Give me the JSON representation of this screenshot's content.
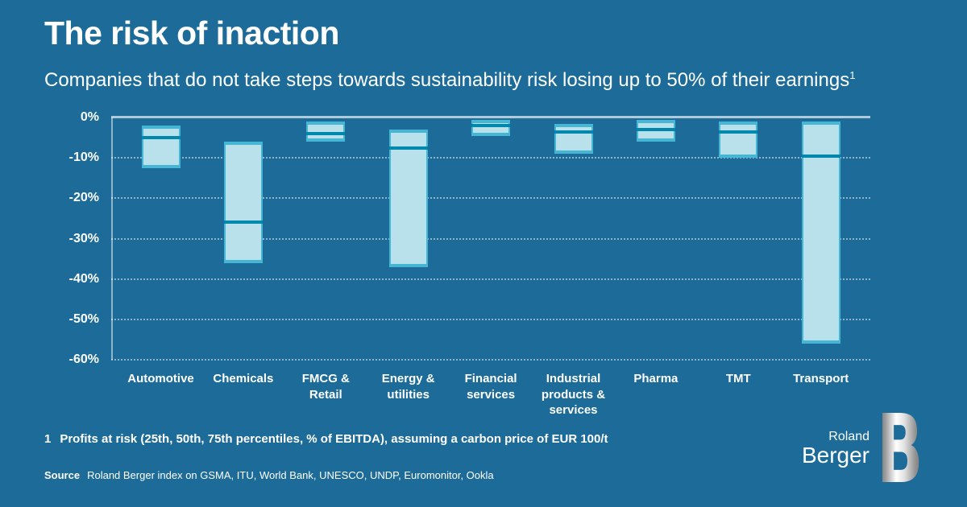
{
  "header": {
    "title": "The risk of inaction",
    "subtitle": "Companies that do not take steps towards sustainability risk losing up to 50% of their earnings",
    "subtitle_footnote_ref": "1"
  },
  "chart_data": {
    "type": "bar",
    "subtype": "floating_range_bars_with_median",
    "description": "Profits at risk by industry: bar spans 25th to 75th percentile loss (% of EBITDA), inner line marks 50th percentile",
    "ylim": [
      -60,
      0
    ],
    "yticks": [
      0,
      -10,
      -20,
      -30,
      -40,
      -50,
      -60
    ],
    "ytick_labels": [
      "0%",
      "-10%",
      "-20%",
      "-30%",
      "-40%",
      "-50%",
      "-60%"
    ],
    "grid": "horizontal_dotted",
    "legend": "none",
    "categories": [
      "Automotive",
      "Chemicals",
      "FMCG & Retail",
      "Energy & utilities",
      "Financial services",
      "Industrial products & services",
      "Pharma",
      "TMT",
      "Transport"
    ],
    "bars": [
      {
        "category": "Automotive",
        "label_lines": [
          "Automotive"
        ],
        "p25": -2,
        "p50": -5,
        "p75": -12.5
      },
      {
        "category": "Chemicals",
        "label_lines": [
          "Chemicals"
        ],
        "p25": -6,
        "p50": -26,
        "p75": -36
      },
      {
        "category": "FMCG & Retail",
        "label_lines": [
          "FMCG &",
          "Retail"
        ],
        "p25": -1,
        "p50": -4,
        "p75": -6
      },
      {
        "category": "Energy & utilities",
        "label_lines": [
          "Energy &",
          "utilities"
        ],
        "p25": -3,
        "p50": -7.5,
        "p75": -37
      },
      {
        "category": "Financial services",
        "label_lines": [
          "Financial",
          "services"
        ],
        "p25": -0.5,
        "p50": -2,
        "p75": -4.5
      },
      {
        "category": "Industrial products & services",
        "label_lines": [
          "Industrial",
          "products &",
          "services"
        ],
        "p25": -1.5,
        "p50": -3.5,
        "p75": -9
      },
      {
        "category": "Pharma",
        "label_lines": [
          "Pharma"
        ],
        "p25": -0.5,
        "p50": -3,
        "p75": -6
      },
      {
        "category": "TMT",
        "label_lines": [
          "TMT"
        ],
        "p25": -1,
        "p50": -3.5,
        "p75": -10
      },
      {
        "category": "Transport",
        "label_lines": [
          "Transport"
        ],
        "p25": -1,
        "p50": -9.5,
        "p75": -56
      }
    ],
    "colors": {
      "background": "#1C6B99",
      "bar_fill": "#B9E1EC",
      "bar_edge": "#45B6D3",
      "median_line": "#0087AD",
      "text": "#FFFFFF"
    }
  },
  "footnote": {
    "marker": "1",
    "text": "Profits at risk (25th, 50th, 75th percentiles, % of EBITDA), assuming a carbon price of EUR 100/t"
  },
  "source": {
    "label": "Source",
    "text": "Roland Berger index on GSMA, ITU, World Bank, UNESCO, UNDP, Euromonitor, Ookla"
  },
  "logo": {
    "line1": "Roland",
    "line2": "Berger",
    "letter": "B"
  }
}
